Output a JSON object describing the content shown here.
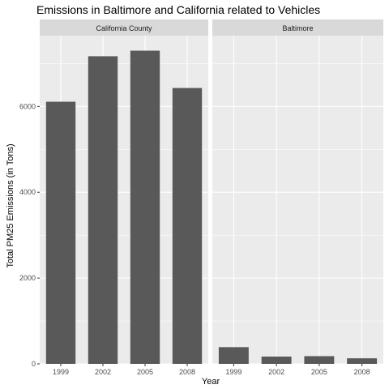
{
  "chart_data": {
    "type": "bar",
    "title": "Emissions in Baltimore and California related to Vehicles",
    "xlabel": "Year",
    "ylabel": "Total PM25 Emissions (in Tons)",
    "categories": [
      "1999",
      "2002",
      "2005",
      "2008"
    ],
    "ylim": [
      0,
      7650
    ],
    "yticks": [
      0,
      2000,
      4000,
      6000
    ],
    "ytick_labels": [
      "0",
      "2000",
      "4000",
      "6000"
    ],
    "grid": true,
    "bar_color": "#595959",
    "panel_background": "#ebebeb",
    "strip_background": "#d9d9d9",
    "facets": [
      {
        "name": "California County",
        "values": [
          6110,
          7170,
          7300,
          6430
        ]
      },
      {
        "name": "Baltimore",
        "values": [
          390,
          170,
          180,
          130
        ]
      }
    ]
  }
}
